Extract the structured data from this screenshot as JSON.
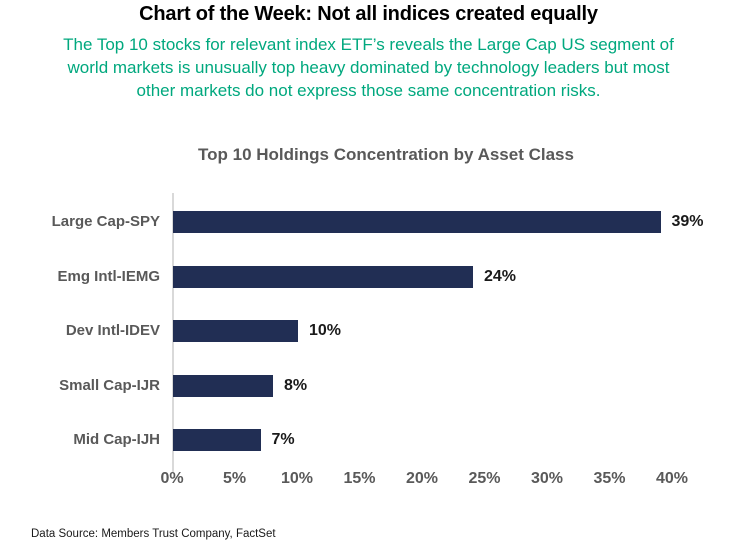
{
  "header": {
    "title": "Chart of the Week: Not all indices created equally",
    "subtitle_lines": [
      "The Top 10 stocks for relevant index ETF’s reveals the Large Cap US segment of",
      "world markets is unusually top heavy dominated by technology leaders but most",
      "other markets do not express those same concentration risks."
    ]
  },
  "chart_data": {
    "type": "bar",
    "orientation": "horizontal",
    "title": "Top 10 Holdings Concentration by Asset Class",
    "categories": [
      "Large Cap-SPY",
      "Emg Intl-IEMG",
      "Dev Intl-IDEV",
      "Small Cap-IJR",
      "Mid Cap-IJH"
    ],
    "values": [
      39,
      24,
      10,
      8,
      7
    ],
    "value_labels": [
      "39%",
      "24%",
      "10%",
      "8%",
      "7%"
    ],
    "xlabel": "",
    "ylabel": "",
    "xlim": [
      0,
      40
    ],
    "x_tick_values": [
      0,
      5,
      10,
      15,
      20,
      25,
      30,
      35,
      40
    ],
    "x_tick_labels": [
      "0%",
      "5%",
      "10%",
      "15%",
      "20%",
      "25%",
      "30%",
      "35%",
      "40%"
    ],
    "grid": false,
    "legend": "none",
    "bar_color": "#212E54"
  },
  "footer": {
    "data_source": "Data Source: Members Trust Company, FactSet"
  },
  "colors": {
    "title_text": "#000000",
    "subtitle_green": "#00A87E",
    "chart_text_gray": "#595959",
    "bar_navy": "#212E54",
    "axis_line_gray": "#D9D9D9",
    "value_label_dark": "#1A1A1A"
  }
}
